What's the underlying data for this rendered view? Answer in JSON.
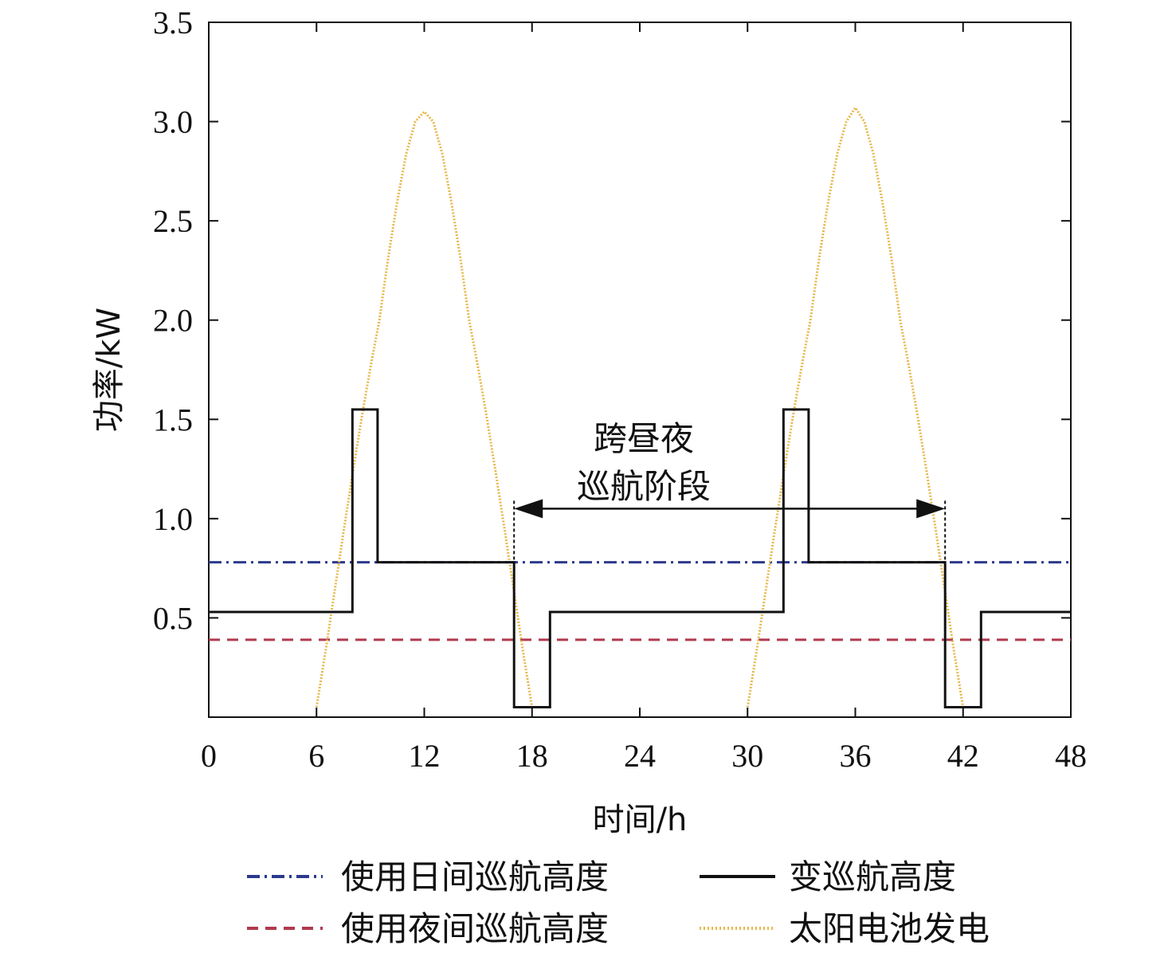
{
  "chart_data": {
    "type": "line",
    "xlabel": "时间/h",
    "ylabel": "功率/kW",
    "xlim": [
      0,
      48
    ],
    "ylim": [
      0,
      3.5
    ],
    "xticks": [
      "0",
      "6",
      "12",
      "18",
      "24",
      "30",
      "36",
      "42",
      "48"
    ],
    "yticks": [
      "0.5",
      "1.0",
      "1.5",
      "2.0",
      "2.5",
      "3.0",
      "3.5"
    ],
    "grid": false,
    "legend_position": "bottom",
    "series": [
      {
        "name": "使用日间巡航高度",
        "style": "dash-dot",
        "color": "#2b3a8c",
        "x": [
          0,
          48
        ],
        "y": [
          0.78,
          0.78
        ]
      },
      {
        "name": "变巡航高度",
        "style": "solid",
        "color": "#111111",
        "x": [
          0,
          8,
          8,
          9.4,
          9.4,
          17,
          17,
          19,
          19,
          32,
          32,
          33.4,
          33.4,
          41,
          41,
          43,
          43,
          48
        ],
        "y": [
          0.53,
          0.53,
          1.55,
          1.55,
          0.78,
          0.78,
          0.05,
          0.05,
          0.53,
          0.53,
          1.55,
          1.55,
          0.78,
          0.78,
          0.05,
          0.05,
          0.53,
          0.53
        ]
      },
      {
        "name": "使用夜间巡航高度",
        "style": "dashed",
        "color": "#b03a4e",
        "x": [
          0,
          48
        ],
        "y": [
          0.39,
          0.39
        ]
      },
      {
        "name": "太阳电池发电",
        "style": "dotted",
        "color": "#e8b84a",
        "x": [
          6,
          6.5,
          7,
          7.5,
          8,
          8.5,
          9,
          9.5,
          10,
          10.5,
          11,
          11.5,
          12,
          12.5,
          13,
          13.5,
          14,
          14.5,
          15,
          15.5,
          16,
          16.5,
          17,
          17.5,
          18,
          30,
          30.5,
          31,
          31.5,
          32,
          32.5,
          33,
          33.5,
          34,
          34.5,
          35,
          35.5,
          36,
          36.5,
          37,
          37.5,
          38,
          38.5,
          39,
          39.5,
          40,
          40.5,
          41,
          41.5,
          42
        ],
        "y": [
          0.05,
          0.33,
          0.63,
          0.93,
          1.22,
          1.5,
          1.76,
          2.0,
          2.32,
          2.6,
          2.84,
          3.0,
          3.05,
          3.0,
          2.84,
          2.6,
          2.32,
          2.0,
          1.76,
          1.5,
          1.22,
          0.93,
          0.63,
          0.33,
          0.05,
          0.05,
          0.33,
          0.63,
          0.93,
          1.22,
          1.5,
          1.76,
          2.0,
          2.32,
          2.6,
          2.84,
          3.0,
          3.07,
          3.0,
          2.84,
          2.6,
          2.32,
          2.0,
          1.76,
          1.5,
          1.22,
          0.93,
          0.63,
          0.33,
          0.05
        ]
      }
    ],
    "annotations": [
      {
        "text_line1": "跨昼夜",
        "text_line2": "巡航阶段",
        "arrow_x": [
          17,
          41
        ],
        "arrow_y": 1.05
      }
    ]
  },
  "legend": {
    "day_label": "使用日间巡航高度",
    "variable_label": "变巡航高度",
    "night_label": "使用夜间巡航高度",
    "solar_label": "太阳电池发电"
  }
}
